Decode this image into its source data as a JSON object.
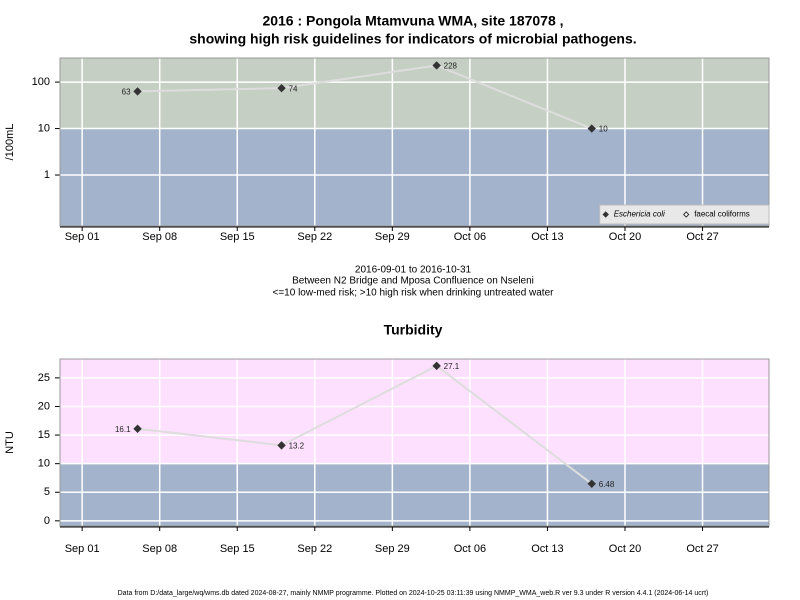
{
  "chart_data": [
    {
      "type": "line",
      "title": [
        "2016 : Pongola Mtamvuna WMA, site 187078 ,",
        "showing high risk guidelines for indicators of microbial pathogens."
      ],
      "ylabel": "/100mL",
      "x": [
        "2016-09-06",
        "2016-09-19",
        "2016-10-03",
        "2016-10-17"
      ],
      "xlim": [
        "2016-08-30",
        "2016-11-02"
      ],
      "xticks": [
        {
          "value": "2016-09-01",
          "label": "Sep 01"
        },
        {
          "value": "2016-09-08",
          "label": "Sep 08"
        },
        {
          "value": "2016-09-15",
          "label": "Sep 15"
        },
        {
          "value": "2016-09-22",
          "label": "Sep 22"
        },
        {
          "value": "2016-09-29",
          "label": "Sep 29"
        },
        {
          "value": "2016-10-06",
          "label": "Oct 06"
        },
        {
          "value": "2016-10-13",
          "label": "Oct 13"
        },
        {
          "value": "2016-10-20",
          "label": "Oct 20"
        },
        {
          "value": "2016-10-27",
          "label": "Oct 27"
        }
      ],
      "ylim": [
        0.08,
        330
      ],
      "yticks": [
        1,
        10,
        100
      ],
      "log_scale": true,
      "grid": true,
      "threshold": 10,
      "band_colors": {
        "above": "#c5cfc3",
        "below": "#a3b3cc"
      },
      "line_color": "#dddddd",
      "legend": "bottom-right",
      "series": [
        {
          "name": "Eschericia coli",
          "color": "#333333",
          "marker": "filled-diamond",
          "font_style": "italic",
          "values": [
            63,
            74,
            228,
            10
          ]
        },
        {
          "name": "faecal coliforms",
          "color": "#333333",
          "marker": "open-diamond",
          "values": [
            null,
            null,
            null,
            null
          ]
        }
      ]
    },
    {
      "type": "line",
      "title": [
        "Turbidity"
      ],
      "ylabel": "NTU",
      "x": [
        "2016-09-06",
        "2016-09-19",
        "2016-10-03",
        "2016-10-17"
      ],
      "xlim": [
        "2016-08-30",
        "2016-11-02"
      ],
      "xticks": [
        {
          "value": "2016-09-01",
          "label": "Sep 01"
        },
        {
          "value": "2016-09-08",
          "label": "Sep 08"
        },
        {
          "value": "2016-09-15",
          "label": "Sep 15"
        },
        {
          "value": "2016-09-22",
          "label": "Sep 22"
        },
        {
          "value": "2016-09-29",
          "label": "Sep 29"
        },
        {
          "value": "2016-10-06",
          "label": "Oct 06"
        },
        {
          "value": "2016-10-13",
          "label": "Oct 13"
        },
        {
          "value": "2016-10-20",
          "label": "Oct 20"
        },
        {
          "value": "2016-10-27",
          "label": "Oct 27"
        }
      ],
      "ylim": [
        -0.9,
        28.3
      ],
      "yticks": [
        0,
        5,
        10,
        15,
        20,
        25
      ],
      "log_scale": false,
      "grid": true,
      "threshold": 10,
      "band_colors": {
        "above": "#fde0fd",
        "below": "#a3b3cc"
      },
      "line_color": "#dddddd",
      "series": [
        {
          "color": "#333333",
          "marker": "filled-diamond",
          "values": [
            16.1,
            13.2,
            27.1,
            6.48
          ]
        }
      ]
    }
  ],
  "notes": [
    "2016-09-01 to 2016-10-31",
    "Between N2 Bridge and Mposa Confluence on Nseleni",
    "<=10 low-med risk; >10 high risk when drinking untreated water"
  ],
  "footer": "Data from D:/data_large/wq/wms.db dated 2024-08-27, mainly NMMP programme. Plotted on 2024-10-25 03:11:39 using NMMP_WMA_web.R ver 9.3 under R version 4.4.1 (2024-06-14 ucrt)"
}
